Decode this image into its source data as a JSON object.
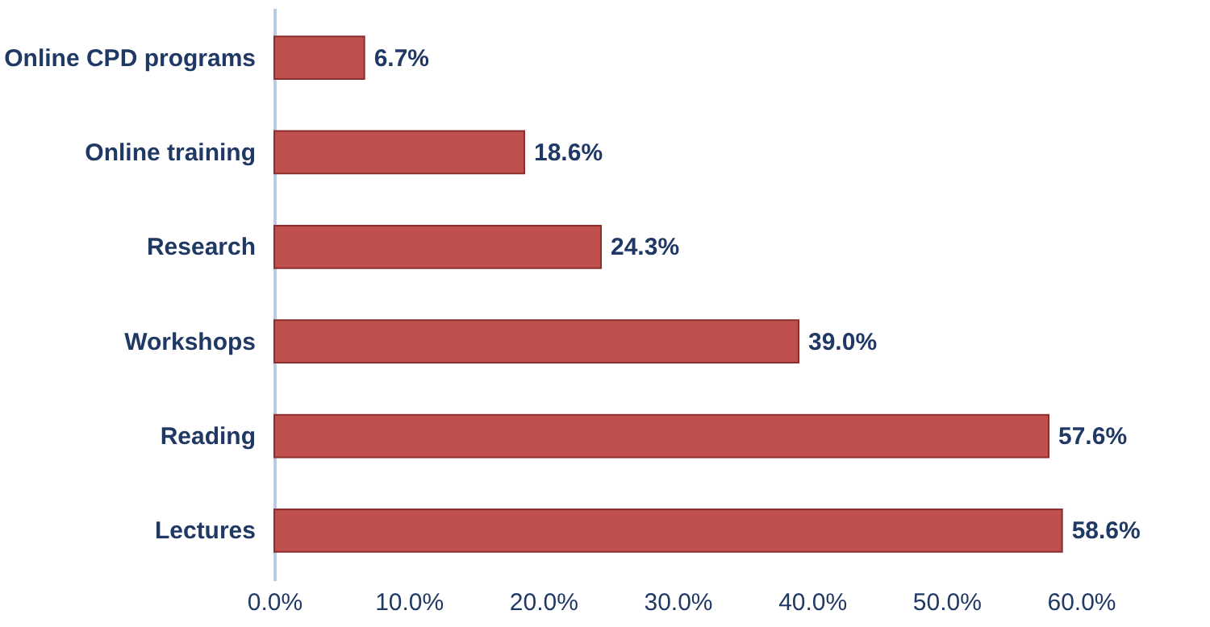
{
  "chart_data": {
    "type": "bar",
    "orientation": "horizontal",
    "categories": [
      "Online CPD programs",
      "Online training",
      "Research",
      "Workshops",
      "Reading",
      "Lectures"
    ],
    "values": [
      6.7,
      18.6,
      24.3,
      39.0,
      57.6,
      58.6
    ],
    "value_labels": [
      "6.7%",
      "18.6%",
      "24.3%",
      "39.0%",
      "57.6%",
      "58.6%"
    ],
    "color": "#c0504d",
    "xlim": [
      0,
      60
    ],
    "xticks": [
      {
        "value": 0,
        "label": "0.0%"
      },
      {
        "value": 10,
        "label": "10.0%"
      },
      {
        "value": 20,
        "label": "20.0%"
      },
      {
        "value": 30,
        "label": "30.0%"
      },
      {
        "value": 40,
        "label": "40.0%"
      },
      {
        "value": 50,
        "label": "50.0%"
      },
      {
        "value": 60,
        "label": "60.0%"
      }
    ],
    "grid": false
  }
}
